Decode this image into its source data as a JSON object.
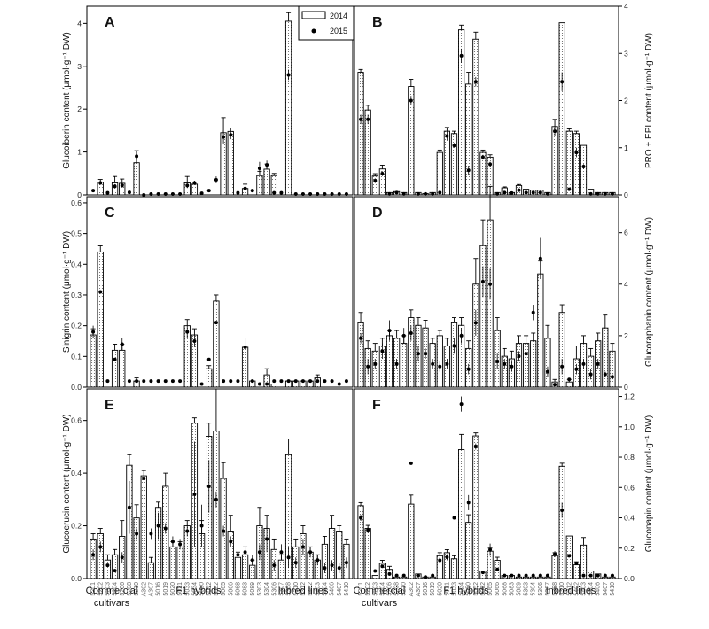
{
  "legend": {
    "y2014": "2014",
    "y2015": "2015"
  },
  "groups": {
    "commercial_line1": "Commercial",
    "commercial_line2": "cultivars",
    "f1": "F1 hybrids",
    "inbred": "Inbred lines"
  },
  "x_labels": [
    "5201",
    "5202",
    "5203",
    "5204",
    "5206",
    "5208",
    "5210",
    "A302",
    "A307",
    "5016",
    "5019",
    "5020",
    "5021",
    "5033",
    "5034",
    "5050",
    "5052",
    "5062",
    "5065",
    "5066",
    "5068",
    "5083",
    "5089",
    "5303",
    "5304",
    "5306",
    "5307",
    "5308",
    "5310",
    "5312",
    "5402",
    "5403",
    "5404",
    "5406",
    "5407",
    "5410"
  ],
  "chart_data": [
    {
      "panel": "A",
      "type": "bar",
      "side": "left",
      "ylabel": "Glucoiberin content (μmol·g⁻¹ DW)",
      "ylim": [
        0,
        4.4
      ],
      "yticks": [
        0,
        1,
        2,
        3,
        4
      ],
      "ytick_labels": [
        "0",
        "1",
        "2",
        "3",
        "4"
      ],
      "series": [
        {
          "name": "2014",
          "values": [
            0,
            0.3,
            0,
            0.28,
            0.27,
            0,
            0.75,
            0,
            0,
            0,
            0,
            0,
            0,
            0.28,
            0.25,
            0,
            0,
            0,
            1.45,
            1.48,
            0,
            0.15,
            0,
            0.45,
            0.6,
            0.45,
            0,
            4.05,
            0,
            0,
            0,
            0,
            0,
            0,
            0,
            0
          ],
          "err": [
            0,
            0.06,
            0,
            0.15,
            0.1,
            0,
            0.28,
            0,
            0,
            0,
            0,
            0,
            0,
            0.15,
            0.05,
            0,
            0,
            0,
            0.35,
            0.08,
            0,
            0.1,
            0,
            0.1,
            0.12,
            0.05,
            0,
            0.2,
            0,
            0,
            0,
            0,
            0,
            0,
            0,
            0
          ]
        },
        {
          "name": "2015",
          "values": [
            0.1,
            0.28,
            0.05,
            0.2,
            0.22,
            0.06,
            0.9,
            0,
            0.02,
            0.02,
            0.02,
            0.02,
            0.02,
            0.22,
            0.28,
            0.04,
            0.1,
            0.35,
            1.35,
            1.4,
            0.05,
            0.15,
            0.1,
            0.62,
            0.7,
            0.05,
            0.05,
            2.8,
            0.02,
            0.02,
            0.02,
            0.02,
            0.02,
            0.02,
            0.02,
            0.02
          ],
          "err": [
            0,
            0.04,
            0,
            0.05,
            0.05,
            0,
            0.12,
            0,
            0,
            0,
            0,
            0,
            0,
            0.06,
            0.05,
            0,
            0,
            0.08,
            0.15,
            0.1,
            0,
            0.05,
            0,
            0.15,
            0.1,
            0,
            0,
            0.12,
            0,
            0,
            0,
            0,
            0,
            0,
            0,
            0
          ]
        }
      ]
    },
    {
      "panel": "B",
      "type": "bar",
      "side": "right",
      "ylabel": "PRO + EPI content (μmol·g⁻¹ DW)",
      "ylim": [
        0,
        4.0
      ],
      "yticks": [
        0,
        1,
        2,
        3,
        4
      ],
      "ytick_labels": [
        "0",
        "1",
        "2",
        "3",
        "4"
      ],
      "series": [
        {
          "name": "2014",
          "values": [
            2.6,
            1.8,
            0.4,
            0.55,
            0.05,
            0.07,
            0.05,
            2.3,
            0.05,
            0.03,
            0.05,
            0.9,
            1.35,
            1.3,
            3.5,
            2.35,
            3.3,
            0.9,
            0.8,
            0.05,
            0.15,
            0.05,
            0.2,
            0.12,
            0.1,
            0.1,
            0.05,
            1.45,
            3.65,
            1.35,
            1.3,
            1.05,
            0.12,
            0.05,
            0.05,
            0.05
          ],
          "err": [
            0.06,
            0.1,
            0.05,
            0.08,
            0,
            0,
            0,
            0.15,
            0,
            0,
            0,
            0.05,
            0.08,
            0.05,
            0.1,
            0.25,
            0.15,
            0.05,
            0.05,
            0,
            0.02,
            0,
            0.02,
            0,
            0,
            0,
            0,
            0.15,
            0,
            0.05,
            0.05,
            0,
            0,
            0,
            0,
            0
          ]
        },
        {
          "name": "2015",
          "values": [
            1.6,
            1.6,
            0.3,
            0.45,
            0.02,
            0.05,
            0.02,
            2.0,
            0.02,
            0.02,
            0.02,
            0.05,
            1.25,
            1.05,
            2.95,
            0.52,
            2.4,
            0.8,
            0.65,
            0.02,
            0.05,
            0.04,
            0.1,
            0.05,
            0.05,
            0.05,
            0.02,
            1.35,
            2.4,
            0.12,
            0.9,
            0.6,
            0.02,
            0.02,
            0.02,
            0.02
          ],
          "err": [
            0.1,
            0.1,
            0.05,
            0.05,
            0,
            0,
            0,
            0.1,
            0,
            0,
            0,
            0,
            0.1,
            0.05,
            0.15,
            0.1,
            0.1,
            0.05,
            0.05,
            0,
            0,
            0,
            0,
            0,
            0,
            0,
            0,
            0.1,
            0.2,
            0,
            0.1,
            0.05,
            0,
            0,
            0,
            0
          ]
        }
      ]
    },
    {
      "panel": "C",
      "type": "bar",
      "side": "left",
      "ylabel": "Sinigrin content (μmol·g⁻¹ DW)",
      "ylim": [
        0,
        0.62
      ],
      "yticks": [
        0,
        0.1,
        0.2,
        0.3,
        0.4,
        0.5,
        0.6
      ],
      "ytick_labels": [
        "0.0",
        "0.1",
        "0.2",
        "0.3",
        "0.4",
        "0.5",
        "0.6"
      ],
      "series": [
        {
          "name": "2014",
          "values": [
            0.17,
            0.44,
            0,
            0.12,
            0.12,
            0,
            0.02,
            0,
            0,
            0,
            0,
            0,
            0,
            0.2,
            0.17,
            0,
            0.06,
            0.28,
            0,
            0,
            0,
            0.13,
            0.02,
            0,
            0.04,
            0.01,
            0,
            0.02,
            0.02,
            0.02,
            0.02,
            0.03,
            0,
            0,
            0,
            0
          ],
          "err": [
            0.02,
            0.02,
            0,
            0.02,
            0.02,
            0,
            0.01,
            0,
            0,
            0,
            0,
            0,
            0,
            0.02,
            0.02,
            0,
            0.01,
            0.02,
            0,
            0,
            0,
            0.03,
            0,
            0,
            0.02,
            0,
            0,
            0,
            0,
            0,
            0,
            0.01,
            0,
            0,
            0,
            0
          ]
        },
        {
          "name": "2015",
          "values": [
            0.18,
            0.31,
            0.02,
            0.09,
            0.14,
            0.02,
            0.02,
            0.02,
            0.02,
            0.02,
            0.02,
            0.02,
            0.02,
            0.18,
            0.15,
            0.01,
            0.09,
            0.21,
            0.02,
            0.02,
            0.02,
            0.13,
            0.02,
            0.01,
            0.01,
            0.02,
            0.02,
            0.02,
            0.02,
            0.02,
            0.02,
            0.02,
            0.02,
            0.02,
            0.01,
            0.02
          ],
          "err": [
            0.02,
            0,
            0,
            0,
            0.02,
            0,
            0,
            0,
            0,
            0,
            0,
            0,
            0,
            0.02,
            0.02,
            0,
            0,
            0,
            0,
            0,
            0,
            0,
            0,
            0,
            0,
            0,
            0,
            0,
            0,
            0,
            0,
            0,
            0,
            0,
            0,
            0
          ]
        }
      ]
    },
    {
      "panel": "D",
      "type": "bar",
      "side": "right",
      "ylabel": "Glucoraphanin content (μmol·g⁻¹ DW)",
      "ylim": [
        0,
        7.4
      ],
      "yticks": [
        0,
        2,
        4,
        6
      ],
      "ytick_labels": [
        "0",
        "2",
        "4",
        "6"
      ],
      "series": [
        {
          "name": "2014",
          "values": [
            2.5,
            1.5,
            1.4,
            1.6,
            2.0,
            1.9,
            1.7,
            2.7,
            2.4,
            2.3,
            1.7,
            2.0,
            1.6,
            2.5,
            2.4,
            1.5,
            4.0,
            5.5,
            6.5,
            2.2,
            1.2,
            1.1,
            1.7,
            1.7,
            1.8,
            4.4,
            1.9,
            0.2,
            2.9,
            0.2,
            1.1,
            1.7,
            1.2,
            1.8,
            2.3,
            1.4
          ],
          "err": [
            0.4,
            0.3,
            0.3,
            0.3,
            0.2,
            0.3,
            0.3,
            0.3,
            0.3,
            0.3,
            0.2,
            0.2,
            0.3,
            0.2,
            0.3,
            0.3,
            1.0,
            1.0,
            1.3,
            0.5,
            0.3,
            0.3,
            0.3,
            0.3,
            0.3,
            0.5,
            0.5,
            0.1,
            0.3,
            0.1,
            0.5,
            0.3,
            0.3,
            0.3,
            0.5,
            0.3
          ]
        },
        {
          "name": "2015",
          "values": [
            1.9,
            0.8,
            0.9,
            1.4,
            2.2,
            0.9,
            2.0,
            2.1,
            1.3,
            1.3,
            0.9,
            0.8,
            0.9,
            1.6,
            2.0,
            0.7,
            2.5,
            4.1,
            4.0,
            1.0,
            0.9,
            0.8,
            1.2,
            1.3,
            2.9,
            5.0,
            0.6,
            0.1,
            0.8,
            0.3,
            0.7,
            0.9,
            0.5,
            0.9,
            0.5,
            0.4
          ],
          "err": [
            0.2,
            0.3,
            0.2,
            0.3,
            0.4,
            0.2,
            0.3,
            0.3,
            0.3,
            0.2,
            0.2,
            0.2,
            0.2,
            0.3,
            0.3,
            0.2,
            0.5,
            0.6,
            0.6,
            0.3,
            0.2,
            0.2,
            0.2,
            0.2,
            0.3,
            0.8,
            0.2,
            0,
            0.3,
            0,
            0.2,
            0.2,
            0.2,
            0.2,
            0.1,
            0.1
          ]
        }
      ]
    },
    {
      "panel": "E",
      "type": "bar",
      "side": "left",
      "ylabel": "Glucoerucin content (μmol·g⁻¹ DW)",
      "ylim": [
        0,
        0.72
      ],
      "yticks": [
        0,
        0.2,
        0.4,
        0.6
      ],
      "ytick_labels": [
        "0.0",
        "0.2",
        "0.4",
        "0.6"
      ],
      "series": [
        {
          "name": "2014",
          "values": [
            0.15,
            0.17,
            0.07,
            0.09,
            0.16,
            0.43,
            0.23,
            0.39,
            0.06,
            0.27,
            0.35,
            0.12,
            0.12,
            0.2,
            0.59,
            0.17,
            0.54,
            0.56,
            0.38,
            0.18,
            0.08,
            0.09,
            0.05,
            0.2,
            0.19,
            0.11,
            0.07,
            0.47,
            0.12,
            0.17,
            0.1,
            0.07,
            0.13,
            0.19,
            0.18,
            0.13
          ],
          "err": [
            0.02,
            0.02,
            0.02,
            0.02,
            0.06,
            0.04,
            0.05,
            0.02,
            0.02,
            0.02,
            0.05,
            0.02,
            0.02,
            0.02,
            0.02,
            0.05,
            0.05,
            0.16,
            0.06,
            0.06,
            0.02,
            0.03,
            0.02,
            0.07,
            0.05,
            0.04,
            0.02,
            0.06,
            0.03,
            0.03,
            0.02,
            0.02,
            0.03,
            0.05,
            0.02,
            0.02
          ]
        },
        {
          "name": "2015",
          "values": [
            0.09,
            0.12,
            0.05,
            0.03,
            0.08,
            0.27,
            0.17,
            0.38,
            0.17,
            0.2,
            0.19,
            0.14,
            0.13,
            0.18,
            0.32,
            0.2,
            0.35,
            0.3,
            0.18,
            0.14,
            0.09,
            0.1,
            0.07,
            0.1,
            0.15,
            0.05,
            0.1,
            0.08,
            0.06,
            0.12,
            0.1,
            0.07,
            0.04,
            0.05,
            0.04,
            0.06
          ],
          "err": [
            0.02,
            0.02,
            0,
            0,
            0.02,
            0.1,
            0.02,
            0,
            0.02,
            0.05,
            0.02,
            0.02,
            0.02,
            0.02,
            0.2,
            0.08,
            0.1,
            0.03,
            0.02,
            0.02,
            0.02,
            0.02,
            0.02,
            0.03,
            0.05,
            0.02,
            0.03,
            0.04,
            0.02,
            0.03,
            0.02,
            0.02,
            0.02,
            0.02,
            0.02,
            0.02
          ]
        }
      ]
    },
    {
      "panel": "F",
      "type": "bar",
      "side": "right",
      "ylabel": "Gluconapin content (μmol·g⁻¹ DW)",
      "ylim": [
        0,
        1.25
      ],
      "yticks": [
        0,
        0.2,
        0.4,
        0.6,
        0.8,
        1.0,
        1.2
      ],
      "ytick_labels": [
        "0.0",
        "0.2",
        "0.4",
        "0.6",
        "0.8",
        "1.0",
        "1.2"
      ],
      "series": [
        {
          "name": "2014",
          "values": [
            0.48,
            0.33,
            0.02,
            0.1,
            0.06,
            0.01,
            0.01,
            0.49,
            0.03,
            0.01,
            0.01,
            0.15,
            0.17,
            0.13,
            0.85,
            0.37,
            0.94,
            0.05,
            0.18,
            0.12,
            0.02,
            0.02,
            0.01,
            0.01,
            0.01,
            0.01,
            0.01,
            0.15,
            0.74,
            0.28,
            0.09,
            0.22,
            0.05,
            0.03,
            0.01,
            0.01
          ],
          "err": [
            0.02,
            0.02,
            0,
            0.02,
            0.02,
            0,
            0,
            0.06,
            0,
            0,
            0,
            0.02,
            0.02,
            0.02,
            0.1,
            0.05,
            0.02,
            0,
            0.02,
            0.02,
            0,
            0,
            0,
            0,
            0,
            0,
            0,
            0.02,
            0.02,
            0,
            0.02,
            0.05,
            0,
            0,
            0,
            0
          ]
        },
        {
          "name": "2015",
          "values": [
            0.4,
            0.32,
            0.05,
            0.08,
            0.03,
            0.02,
            0.02,
            0.76,
            0.02,
            0.01,
            0.02,
            0.12,
            0.14,
            0.4,
            1.15,
            0.5,
            0.87,
            0.04,
            0.19,
            0.06,
            0.02,
            0.02,
            0.02,
            0.02,
            0.02,
            0.02,
            0.02,
            0.16,
            0.45,
            0.15,
            0.1,
            0.02,
            0.02,
            0.02,
            0.02,
            0.02
          ],
          "err": [
            0.02,
            0.02,
            0,
            0,
            0,
            0,
            0,
            0,
            0,
            0,
            0,
            0.02,
            0.02,
            0.01,
            0.05,
            0.05,
            0.02,
            0,
            0.04,
            0,
            0,
            0,
            0,
            0,
            0,
            0,
            0,
            0.02,
            0.05,
            0,
            0,
            0,
            0,
            0,
            0,
            0
          ]
        }
      ]
    }
  ]
}
